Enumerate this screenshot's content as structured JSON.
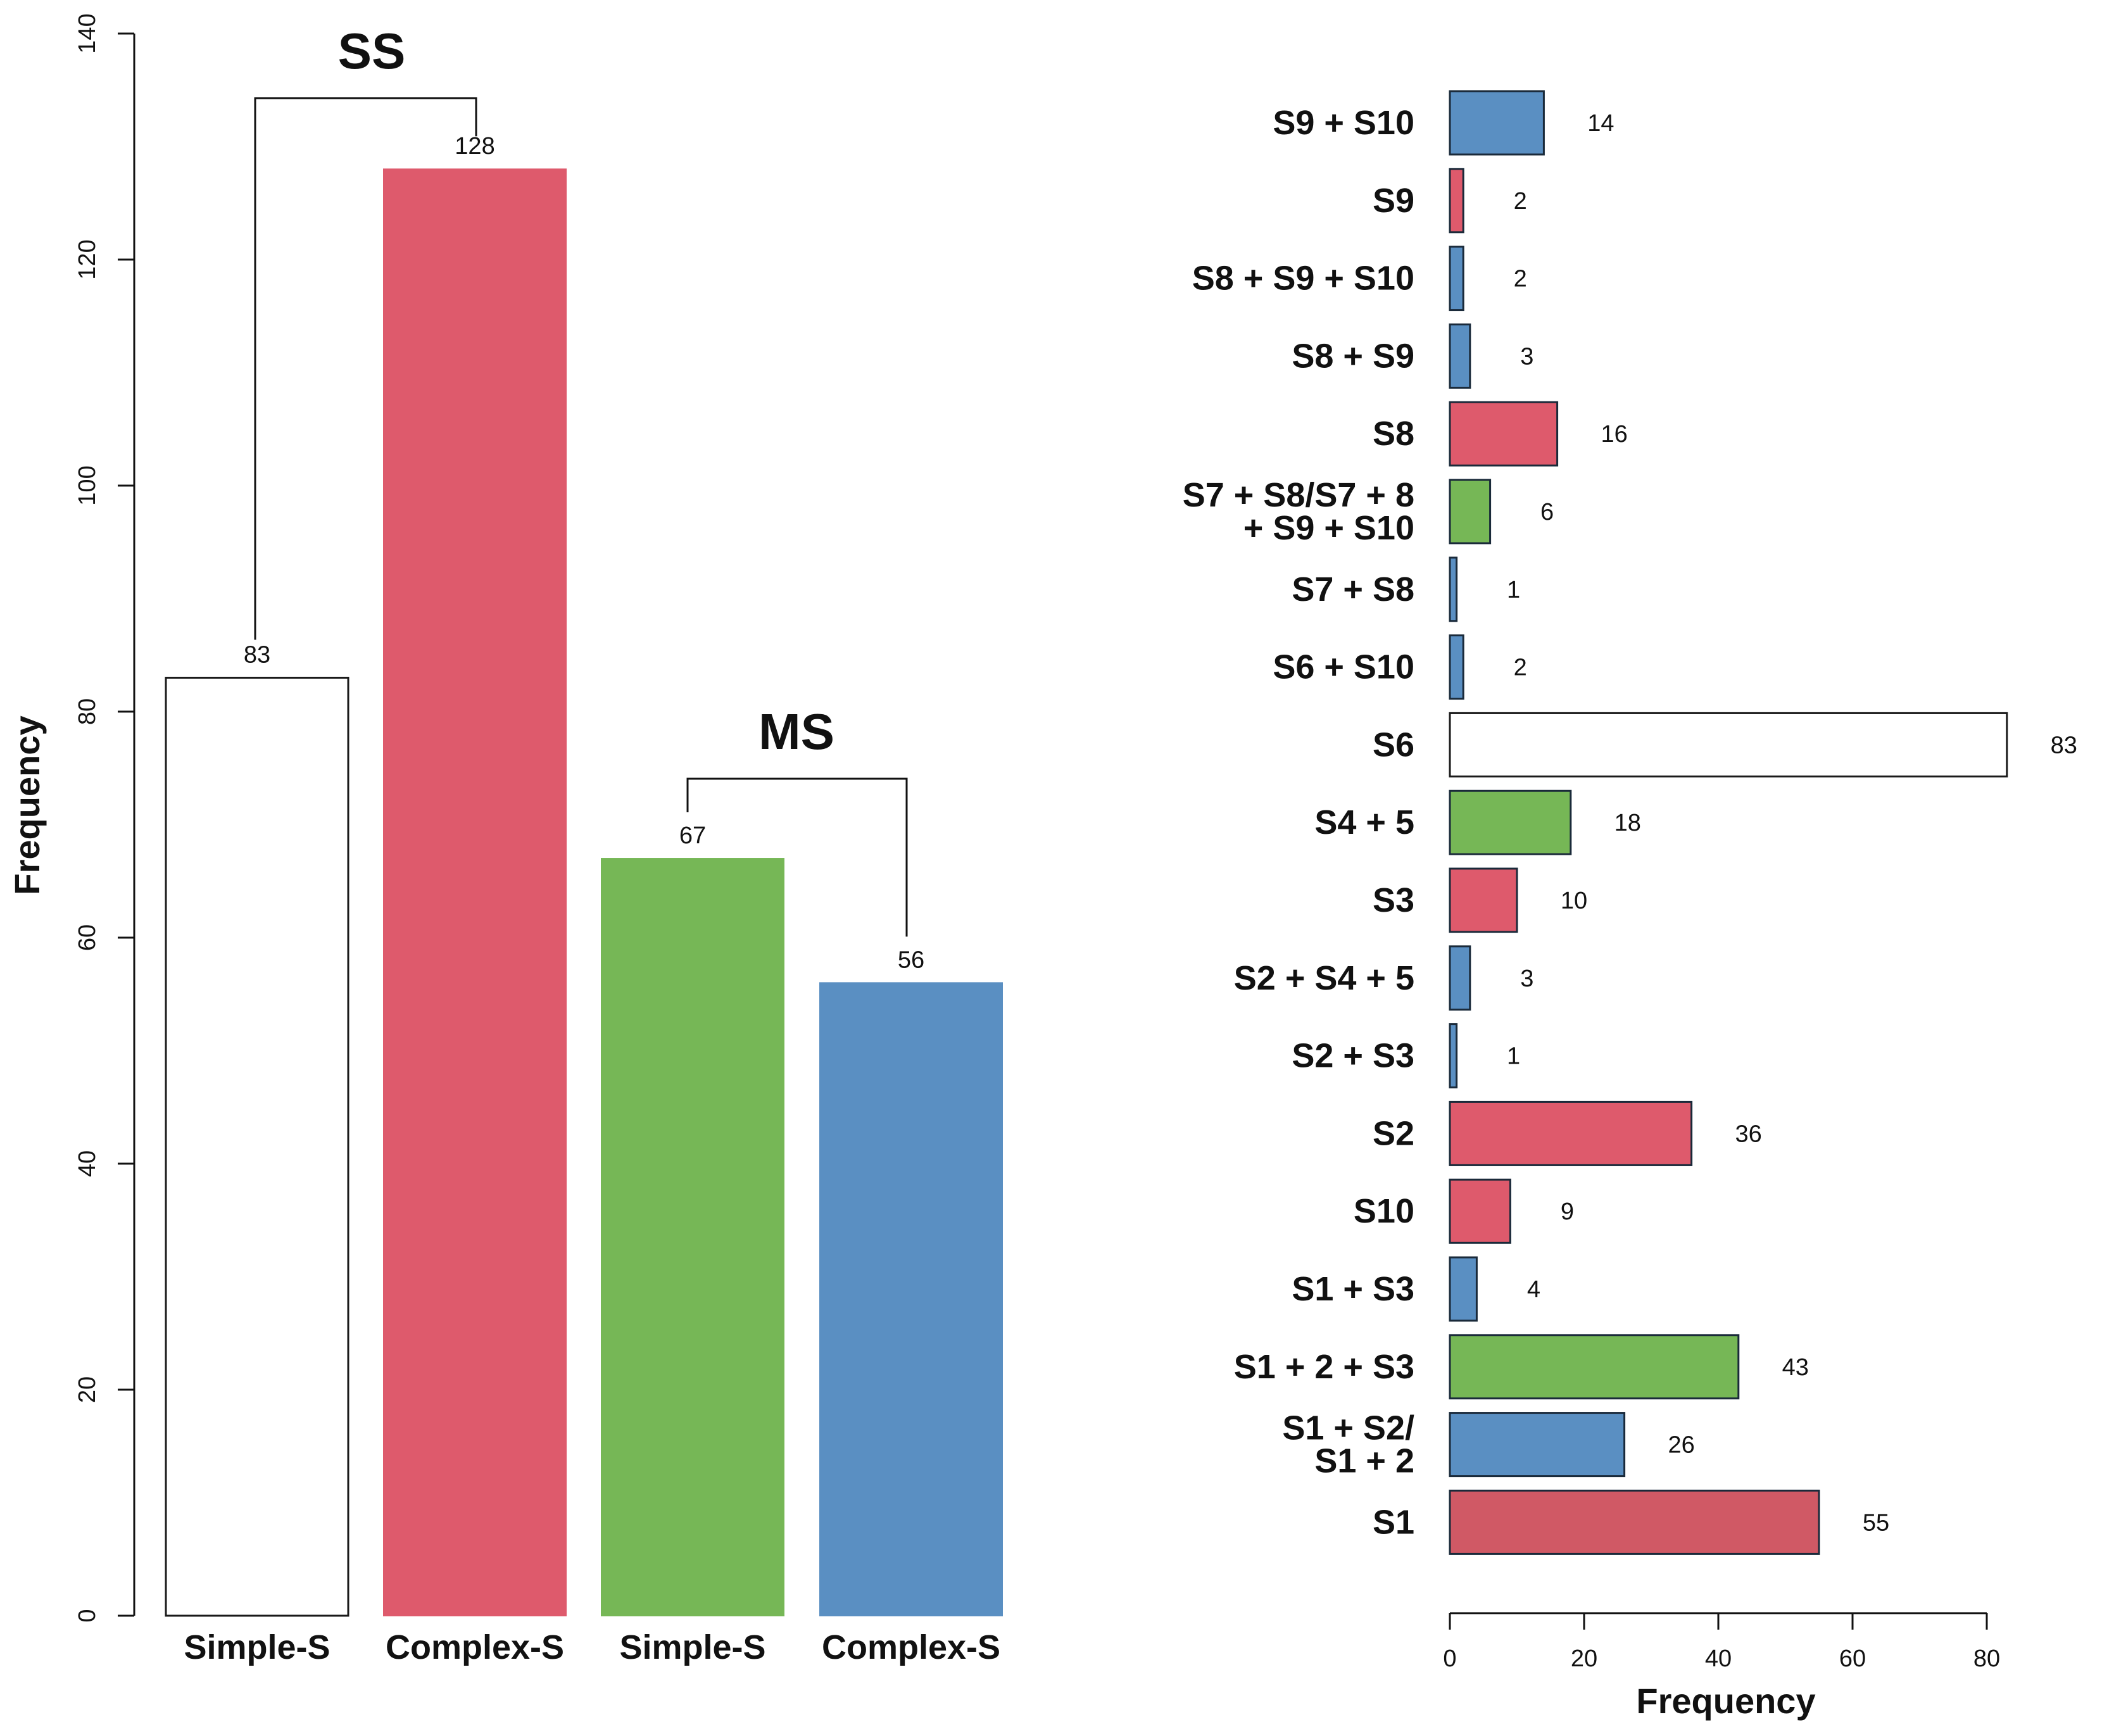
{
  "colors": {
    "white": "#ffffff",
    "red": "#de5a6c",
    "green": "#76b756",
    "blue": "#5a8fc2",
    "red_dark": "#d05965",
    "outline": "#1a1a1a"
  },
  "chart_data": [
    {
      "type": "bar",
      "orientation": "vertical",
      "ylabel": "Frequency",
      "ylim": [
        0,
        140
      ],
      "yticks": [
        0,
        20,
        40,
        60,
        80,
        100,
        120,
        140
      ],
      "categories": [
        "Simple-S",
        "Complex-S",
        "Simple-S",
        "Complex-S"
      ],
      "values": [
        83,
        128,
        67,
        56
      ],
      "bar_colors": [
        "white",
        "red",
        "green",
        "blue"
      ],
      "groups": [
        {
          "title": "SS",
          "bars": [
            0,
            1
          ]
        },
        {
          "title": "MS",
          "bars": [
            2,
            3
          ]
        }
      ]
    },
    {
      "type": "bar",
      "orientation": "horizontal",
      "xlabel": "Frequency",
      "xlim": [
        0,
        80
      ],
      "xticks": [
        0,
        20,
        40,
        60,
        80
      ],
      "categories": [
        {
          "lines": [
            "S9 + S10"
          ],
          "value": 14,
          "color": "blue"
        },
        {
          "lines": [
            "S9"
          ],
          "value": 2,
          "color": "red"
        },
        {
          "lines": [
            "S8 + S9 + S10"
          ],
          "value": 2,
          "color": "blue"
        },
        {
          "lines": [
            "S8 + S9"
          ],
          "value": 3,
          "color": "blue"
        },
        {
          "lines": [
            "S8"
          ],
          "value": 16,
          "color": "red"
        },
        {
          "lines": [
            "S7 + S8/S7 + 8",
            "+ S9 + S10"
          ],
          "value": 6,
          "color": "green"
        },
        {
          "lines": [
            "S7 + S8"
          ],
          "value": 1,
          "color": "blue"
        },
        {
          "lines": [
            "S6 + S10"
          ],
          "value": 2,
          "color": "blue"
        },
        {
          "lines": [
            "S6"
          ],
          "value": 83,
          "color": "white"
        },
        {
          "lines": [
            "S4 + 5"
          ],
          "value": 18,
          "color": "green"
        },
        {
          "lines": [
            "S3"
          ],
          "value": 10,
          "color": "red"
        },
        {
          "lines": [
            "S2 + S4 + 5"
          ],
          "value": 3,
          "color": "blue"
        },
        {
          "lines": [
            "S2 + S3"
          ],
          "value": 1,
          "color": "blue"
        },
        {
          "lines": [
            "S2"
          ],
          "value": 36,
          "color": "red"
        },
        {
          "lines": [
            "S10"
          ],
          "value": 9,
          "color": "red"
        },
        {
          "lines": [
            "S1 + S3"
          ],
          "value": 4,
          "color": "blue"
        },
        {
          "lines": [
            "S1 + 2 + S3"
          ],
          "value": 43,
          "color": "green"
        },
        {
          "lines": [
            "S1 + S2/",
            "S1 + 2"
          ],
          "value": 26,
          "color": "blue"
        },
        {
          "lines": [
            "S1"
          ],
          "value": 55,
          "color": "red_dark"
        }
      ]
    }
  ]
}
